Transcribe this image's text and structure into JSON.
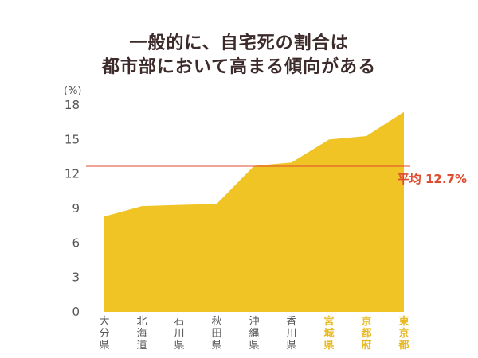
{
  "title_line1": "一般的に、自宅死の割合は",
  "title_line2": "都市部において高まる傾向がある",
  "chart_data": {
    "type": "area",
    "unit_label": "(%)",
    "categories": [
      "大分県",
      "北海道",
      "石川県",
      "秋田県",
      "沖縄県",
      "香川県",
      "宮城県",
      "京都府",
      "東京都"
    ],
    "highlight_categories": [
      "宮城県",
      "京都府",
      "東京都"
    ],
    "values": [
      8.3,
      9.2,
      9.3,
      9.4,
      12.7,
      13.0,
      15.0,
      15.3,
      17.4
    ],
    "ylim": [
      0,
      18
    ],
    "yticks": [
      0,
      3,
      6,
      9,
      12,
      15,
      18
    ],
    "average": {
      "label": "平均 12.7%",
      "value": 12.7
    },
    "colors": {
      "area": "#f0c424",
      "average_line": "#e04a2f",
      "highlight_label": "#e8b820",
      "default_label": "#555555"
    },
    "grid": false
  }
}
